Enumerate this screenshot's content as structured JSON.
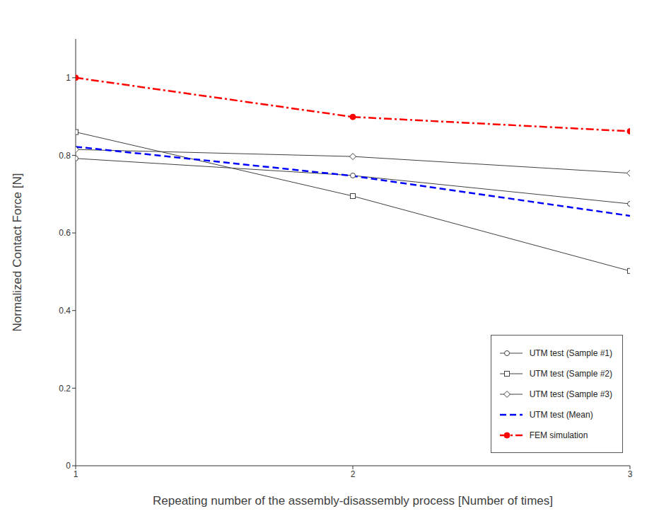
{
  "chart_data": {
    "type": "line",
    "x_label": "Repeating number of the assembly-disassembly process [Number of times]",
    "y_label": "Normalized Contact Force [N]",
    "x": [
      1,
      2,
      3
    ],
    "xlim": [
      1,
      3
    ],
    "xticks": [
      1,
      2,
      3
    ],
    "ylim": [
      0,
      1.1
    ],
    "yticks": [
      0,
      0.2,
      0.4,
      0.6,
      0.8,
      1
    ],
    "grid": false,
    "legend": "lower right",
    "series": [
      {
        "name": "UTM test (Sample #1)",
        "color": "#404040",
        "marker": "open_circle",
        "line_style": "solid",
        "values": [
          0.792,
          0.748,
          0.675
        ]
      },
      {
        "name": "UTM test (Sample #2)",
        "color": "#404040",
        "marker": "open_square",
        "line_style": "solid",
        "values": [
          0.86,
          0.695,
          0.502
        ]
      },
      {
        "name": "UTM test (Sample #3)",
        "color": "#404040",
        "marker": "open_diamond",
        "line_style": "solid",
        "values": [
          0.815,
          0.797,
          0.754
        ]
      },
      {
        "name": "UTM test (Mean)",
        "color": "#0000ff",
        "marker": "none",
        "line_style": "dashed",
        "values": [
          0.822,
          0.747,
          0.644
        ]
      },
      {
        "name": "FEM simulation",
        "color": "#ff0000",
        "marker": "filled_circle",
        "line_style": "dashdot",
        "values": [
          1.0,
          0.899,
          0.862
        ]
      }
    ]
  }
}
